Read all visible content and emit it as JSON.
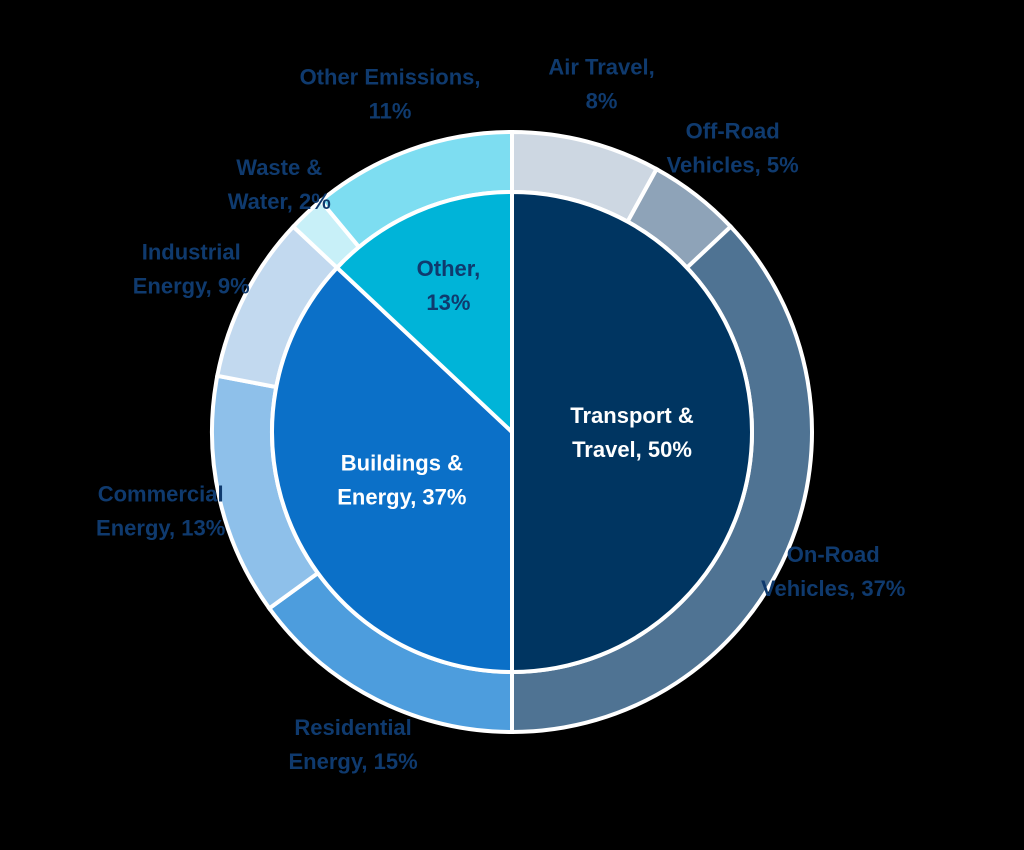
{
  "chart_data": {
    "type": "pie",
    "variant": "two-level donut",
    "inner_ring": [
      {
        "label_lines": [
          "Transport &",
          "Travel, 50%"
        ],
        "value": 50,
        "color": "#003561"
      },
      {
        "label_lines": [
          "Buildings &",
          "Energy, 37%"
        ],
        "value": 37,
        "color": "#0b70c8"
      },
      {
        "label_lines": [
          "Other,",
          "13%"
        ],
        "value": 13,
        "color": "#00b4d8"
      }
    ],
    "outer_ring": [
      {
        "label_lines": [
          "Air Travel,",
          "8%"
        ],
        "value": 8,
        "color": "#cdd7e2"
      },
      {
        "label_lines": [
          "Off-Road",
          "Vehicles, 5%"
        ],
        "value": 5,
        "color": "#8ea3b8"
      },
      {
        "label_lines": [
          "On-Road",
          "Vehicles, 37%"
        ],
        "value": 37,
        "color": "#4f7393"
      },
      {
        "label_lines": [
          "Residential",
          "Energy, 15%"
        ],
        "value": 15,
        "color": "#4d9ddd"
      },
      {
        "label_lines": [
          "Commercial",
          "Energy, 13%"
        ],
        "value": 13,
        "color": "#8ec0ea"
      },
      {
        "label_lines": [
          "Industrial",
          "Energy, 9%"
        ],
        "value": 9,
        "color": "#c2d9ef"
      },
      {
        "label_lines": [
          "Waste &",
          "Water, 2%"
        ],
        "value": 2,
        "color": "#c8f0f8"
      },
      {
        "label_lines": [
          "Other Emissions,",
          "11%"
        ],
        "value": 11,
        "color": "#7dddf1"
      }
    ],
    "start": "12 o'clock",
    "direction": "clockwise",
    "legend": "none"
  }
}
